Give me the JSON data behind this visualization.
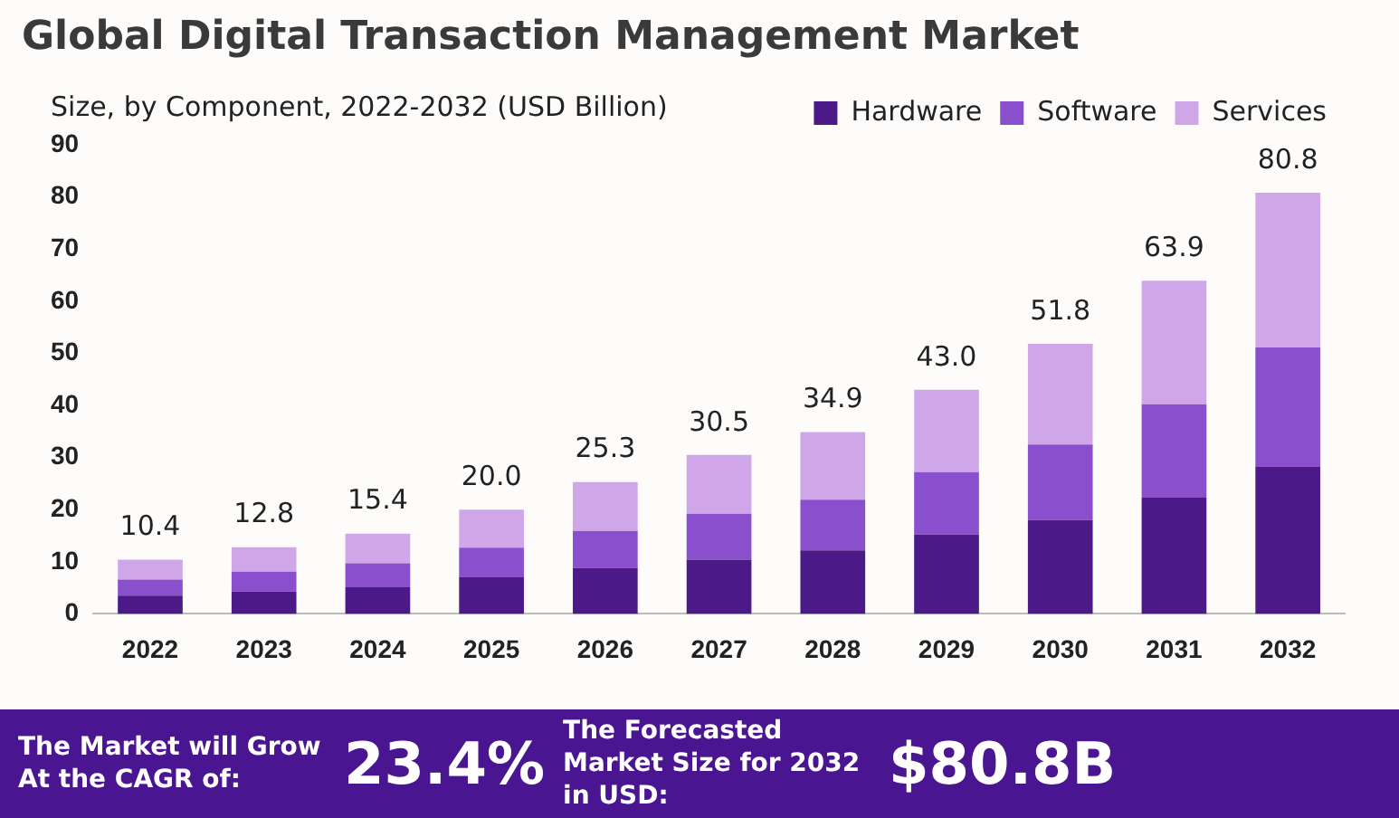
{
  "chart_data": {
    "type": "bar",
    "stacked": true,
    "title": "Global Digital Transaction Management Market",
    "subtitle": "Size, by Component, 2022-2032 (USD Billion)",
    "categories": [
      "2022",
      "2023",
      "2024",
      "2025",
      "2026",
      "2027",
      "2028",
      "2029",
      "2030",
      "2031",
      "2032"
    ],
    "series": [
      {
        "name": "Hardware",
        "color": "#4b1a88",
        "values": [
          3.5,
          4.3,
          5.1,
          7.0,
          8.8,
          10.4,
          12.2,
          15.2,
          18.0,
          22.3,
          28.3
        ]
      },
      {
        "name": "Software",
        "color": "#8a4fcc",
        "values": [
          3.1,
          3.8,
          4.6,
          5.7,
          7.1,
          8.8,
          9.7,
          12.0,
          14.5,
          17.9,
          22.8
        ]
      },
      {
        "name": "Services",
        "color": "#cfa7e8",
        "values": [
          3.8,
          4.7,
          5.7,
          7.3,
          9.4,
          11.3,
          13.0,
          15.8,
          19.3,
          23.7,
          29.7
        ]
      }
    ],
    "totals": [
      "10.4",
      "12.8",
      "15.4",
      "20.0",
      "25.3",
      "30.5",
      "34.9",
      "43.0",
      "51.8",
      "63.9",
      "80.8"
    ],
    "ylim": [
      0,
      90
    ],
    "yticks": [
      0,
      10,
      20,
      30,
      40,
      50,
      60,
      70,
      80,
      90
    ],
    "grid": false,
    "legend": "top right",
    "annotations": [
      "The Market will Grow At the CAGR of:",
      "23.4%",
      "The Forecasted Market Size for 2032 in USD:",
      "$80.8B"
    ]
  }
}
